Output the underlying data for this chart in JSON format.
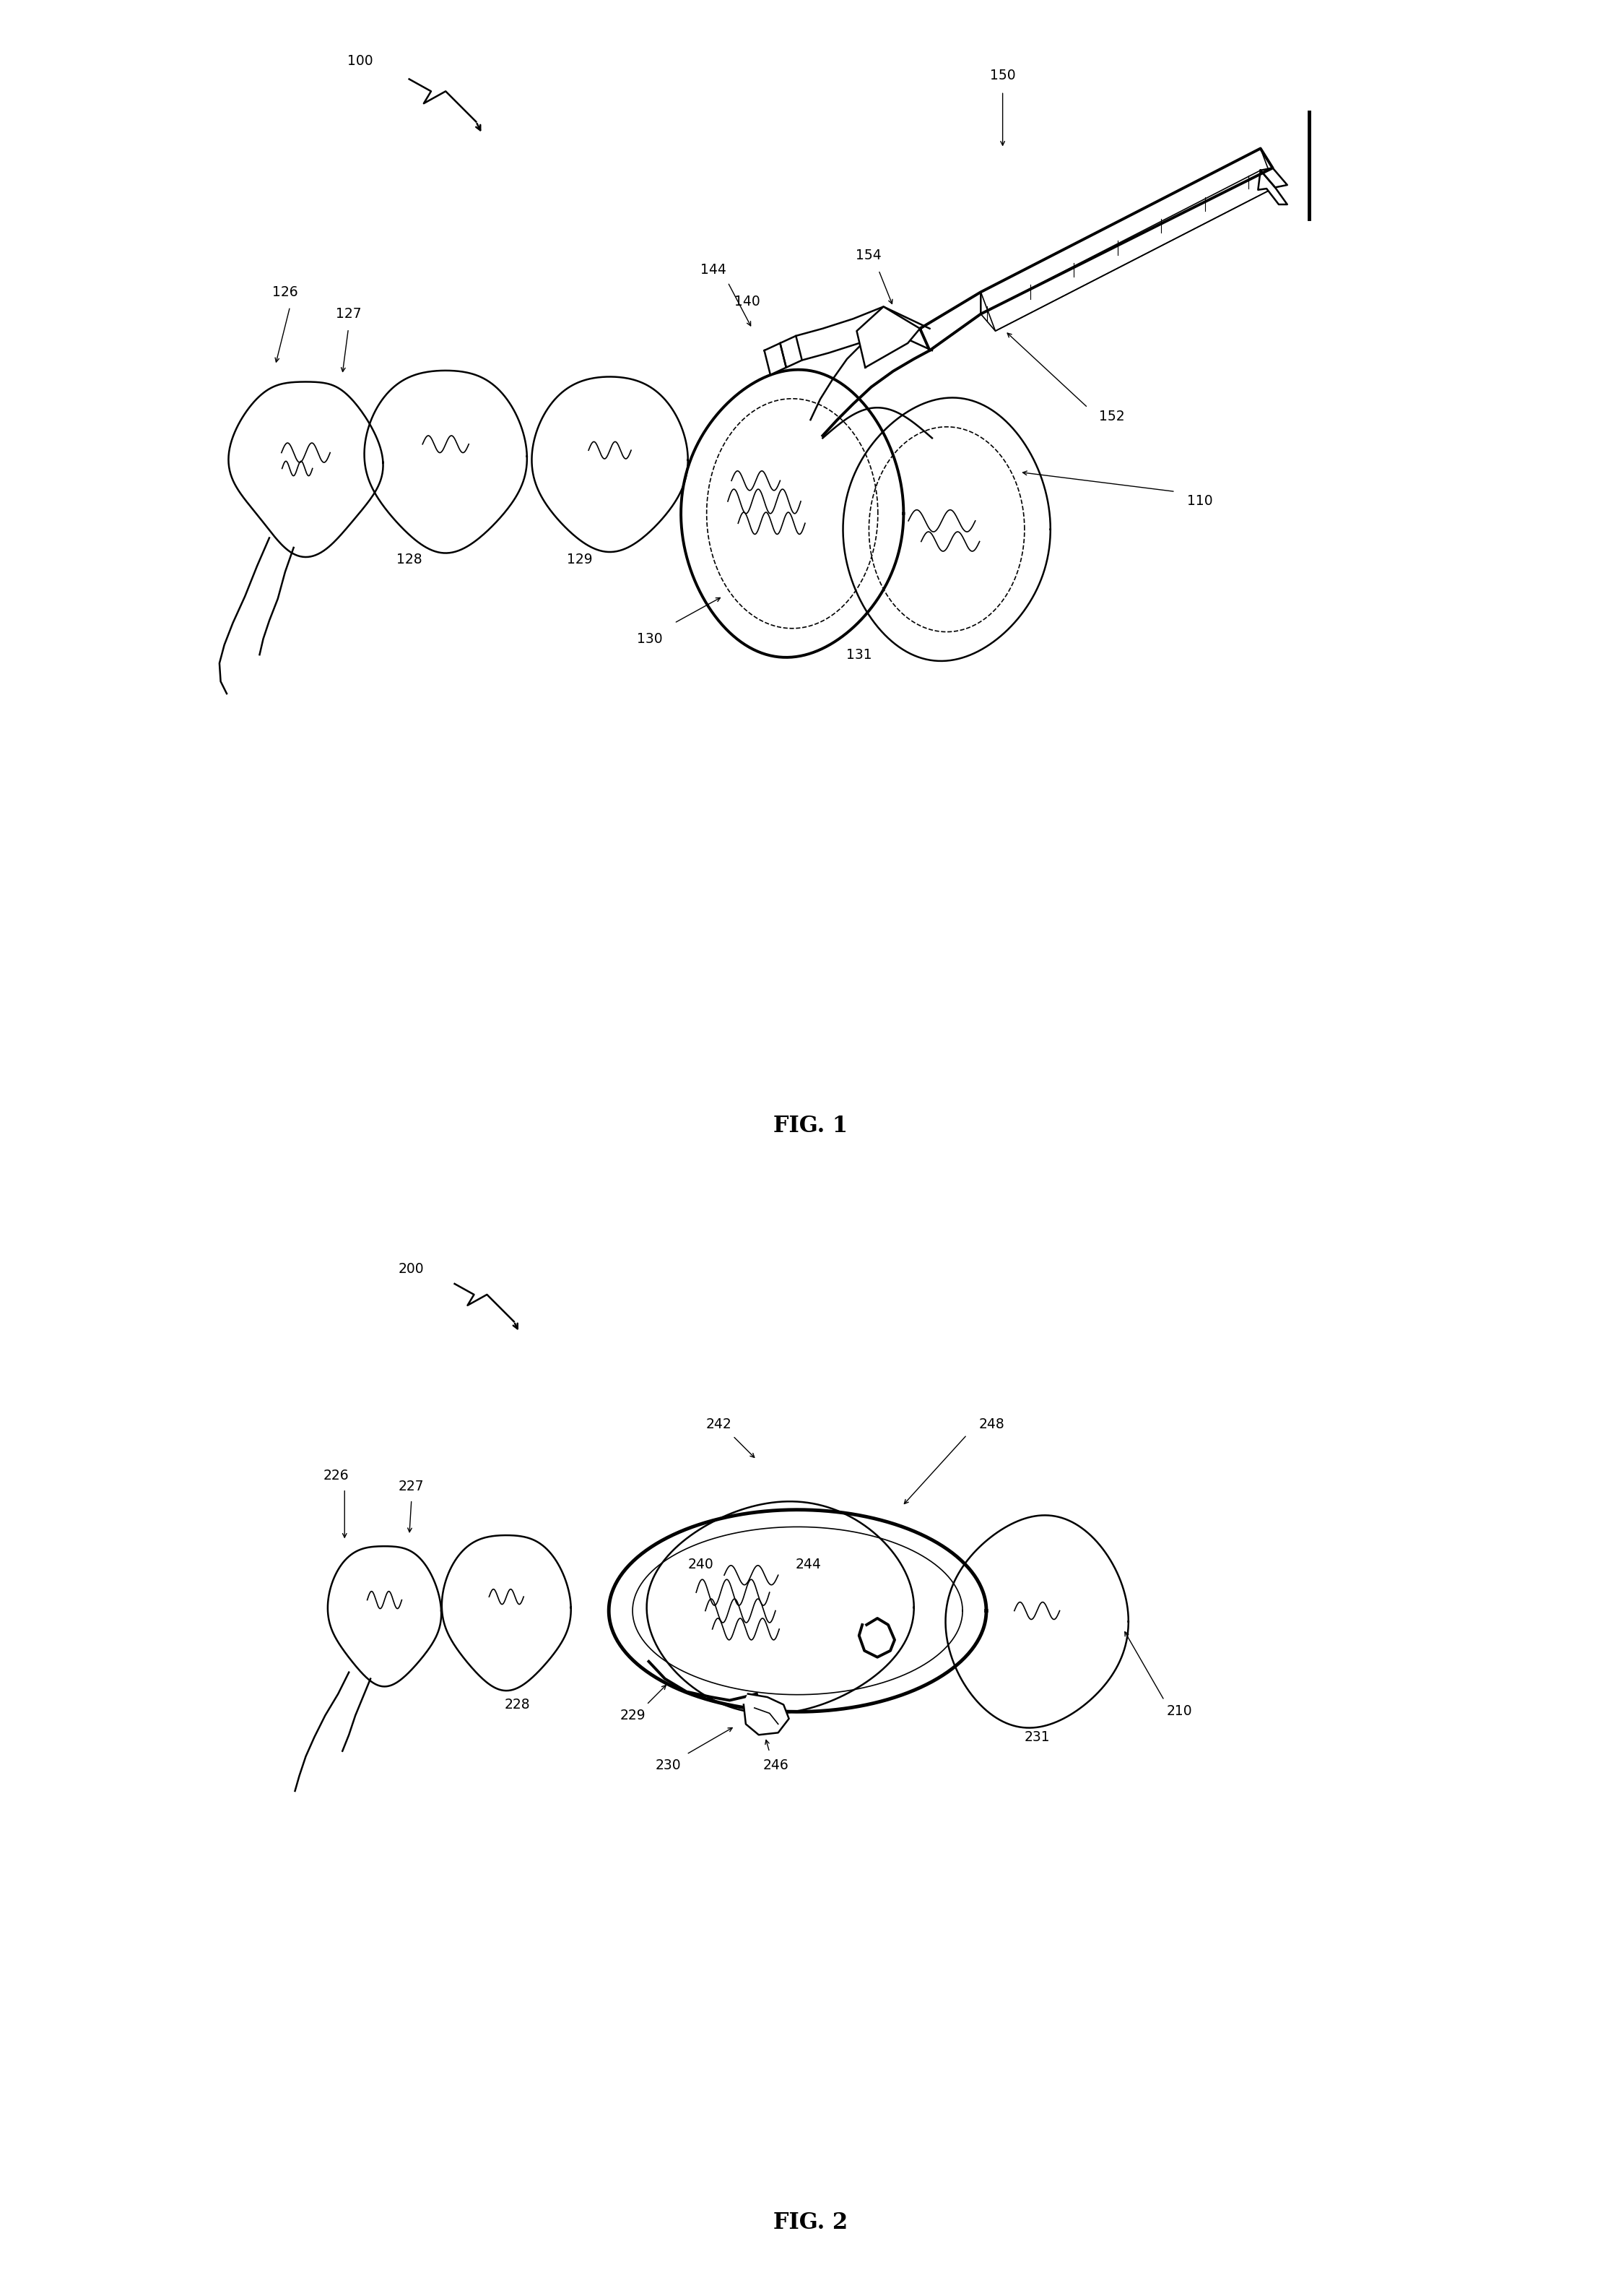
{
  "fig_width": 22.45,
  "fig_height": 31.78,
  "bg_color": "#ffffff",
  "line_color": "#000000",
  "fig1_caption": "FIG. 1",
  "fig2_caption": "FIG. 2"
}
